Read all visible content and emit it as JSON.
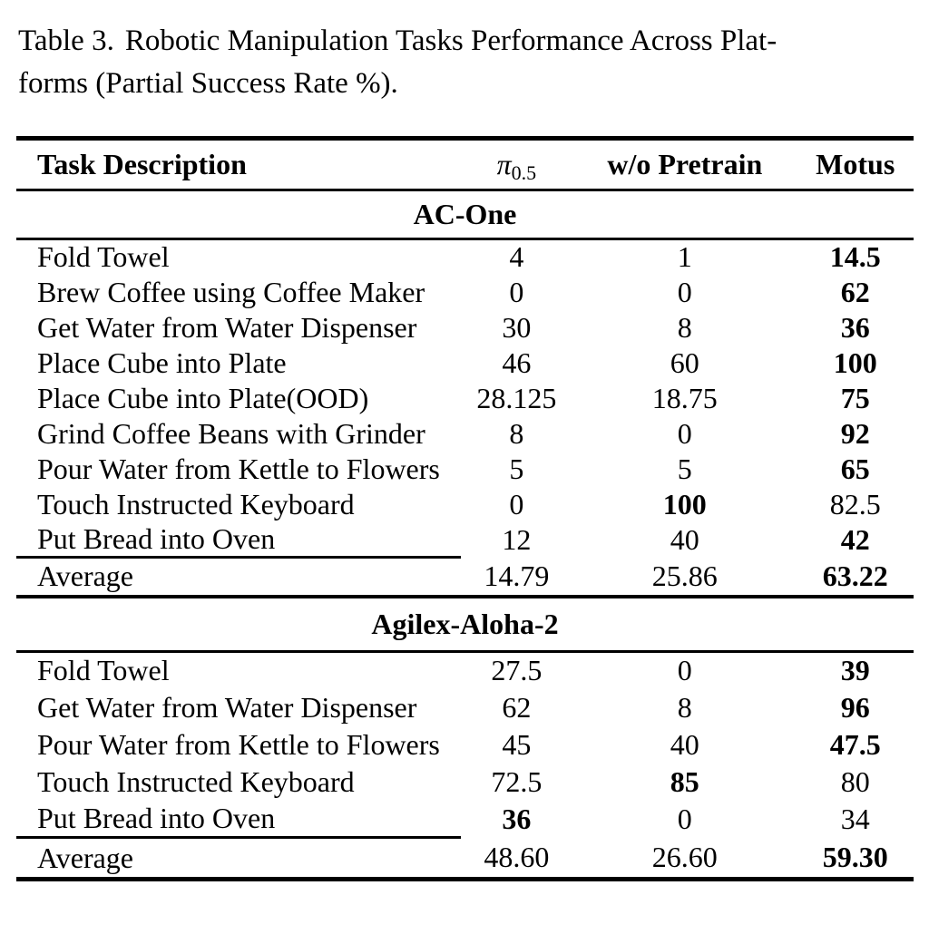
{
  "caption": {
    "label": "Table 3.",
    "title_line1": "Robotic Manipulation Tasks Performance Across Plat-",
    "title_line2": "forms (Partial Success Rate %)."
  },
  "table": {
    "columns": {
      "task": "Task Description",
      "pi_symbol": "π",
      "pi_subscript": "0.5",
      "wo_pretrain": "w/o Pretrain",
      "motus": "Motus"
    },
    "sections": [
      {
        "name": "AC-One",
        "rows": [
          {
            "task": "Fold Towel",
            "pi05": "4",
            "wo_pretrain": "1",
            "motus": "14.5",
            "bold": "motus"
          },
          {
            "task": "Brew Coffee using Coffee Maker",
            "pi05": "0",
            "wo_pretrain": "0",
            "motus": "62",
            "bold": "motus"
          },
          {
            "task": "Get Water from Water Dispenser",
            "pi05": "30",
            "wo_pretrain": "8",
            "motus": "36",
            "bold": "motus"
          },
          {
            "task": "Place Cube into Plate",
            "pi05": "46",
            "wo_pretrain": "60",
            "motus": "100",
            "bold": "motus"
          },
          {
            "task": "Place Cube into Plate(OOD)",
            "pi05": "28.125",
            "wo_pretrain": "18.75",
            "motus": "75",
            "bold": "motus"
          },
          {
            "task": "Grind Coffee Beans with Grinder",
            "pi05": "8",
            "wo_pretrain": "0",
            "motus": "92",
            "bold": "motus"
          },
          {
            "task": "Pour Water from Kettle to Flowers",
            "pi05": "5",
            "wo_pretrain": "5",
            "motus": "65",
            "bold": "motus"
          },
          {
            "task": "Touch Instructed Keyboard",
            "pi05": "0",
            "wo_pretrain": "100",
            "motus": "82.5",
            "bold": "wo_pretrain"
          },
          {
            "task": "Put Bread into Oven",
            "pi05": "12",
            "wo_pretrain": "40",
            "motus": "42",
            "bold": "motus"
          }
        ],
        "average": {
          "task": "Average",
          "pi05": "14.79",
          "wo_pretrain": "25.86",
          "motus": "63.22",
          "bold": "motus"
        }
      },
      {
        "name": "Agilex-Aloha-2",
        "rows": [
          {
            "task": "Fold Towel",
            "pi05": "27.5",
            "wo_pretrain": "0",
            "motus": "39",
            "bold": "motus"
          },
          {
            "task": "Get Water from Water Dispenser",
            "pi05": "62",
            "wo_pretrain": "8",
            "motus": "96",
            "bold": "motus"
          },
          {
            "task": "Pour Water from Kettle to Flowers",
            "pi05": "45",
            "wo_pretrain": "40",
            "motus": "47.5",
            "bold": "motus"
          },
          {
            "task": "Touch Instructed Keyboard",
            "pi05": "72.5",
            "wo_pretrain": "85",
            "motus": "80",
            "bold": "wo_pretrain"
          },
          {
            "task": "Put Bread into Oven",
            "pi05": "36",
            "wo_pretrain": "0",
            "motus": "34",
            "bold": "pi05"
          }
        ],
        "average": {
          "task": "Average",
          "pi05": "48.60",
          "wo_pretrain": "26.60",
          "motus": "59.30",
          "bold": "motus"
        }
      }
    ]
  }
}
